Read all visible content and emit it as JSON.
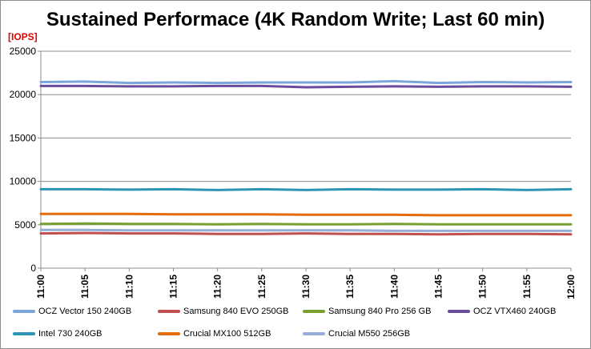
{
  "chart_data": {
    "type": "line",
    "title": "Sustained Performace (4K Random Write; Last 60 min)",
    "ylabel": "[IOPS]",
    "xlabel": "",
    "ylim": [
      0,
      25000
    ],
    "yticks": [
      "25000",
      "20000",
      "15000",
      "10000",
      "5000",
      "0"
    ],
    "x": [
      "11:00",
      "11:05",
      "11:10",
      "11:15",
      "11:20",
      "11:25",
      "11:30",
      "11:35",
      "11:40",
      "11:45",
      "11:50",
      "11:55",
      "12:00"
    ],
    "grid": "horizontal",
    "legend_position": "bottom",
    "series": [
      {
        "name": "OCZ Vector 150 240GB",
        "color": "#7ba6dc",
        "values": [
          21450,
          21500,
          21350,
          21400,
          21350,
          21400,
          21400,
          21400,
          21550,
          21350,
          21450,
          21400,
          21450
        ]
      },
      {
        "name": "Samsung 840 EVO 250GB",
        "color": "#c0504d",
        "values": [
          4000,
          4050,
          4000,
          4000,
          3950,
          3950,
          4000,
          3950,
          3950,
          3900,
          3950,
          3950,
          3900
        ]
      },
      {
        "name": "Samsung 840 Pro 256 GB",
        "color": "#77a030",
        "values": [
          5100,
          5150,
          5100,
          5100,
          5050,
          5100,
          5050,
          5050,
          5100,
          5050,
          5050,
          5050,
          5050
        ]
      },
      {
        "name": "OCZ VTX460 240GB",
        "color": "#6a4c9c",
        "values": [
          21000,
          21000,
          20950,
          20950,
          21000,
          21000,
          20850,
          20900,
          20950,
          20900,
          20950,
          20950,
          20900
        ]
      },
      {
        "name": "Intel 730 240GB",
        "color": "#2c95b5",
        "values": [
          9100,
          9100,
          9050,
          9100,
          9000,
          9100,
          9000,
          9100,
          9050,
          9050,
          9100,
          9000,
          9100
        ]
      },
      {
        "name": "Crucial MX100 512GB",
        "color": "#e46c0a",
        "values": [
          6250,
          6250,
          6250,
          6200,
          6200,
          6200,
          6150,
          6150,
          6150,
          6100,
          6100,
          6100,
          6100
        ]
      },
      {
        "name": "Crucial M550 256GB",
        "color": "#94afd6",
        "values": [
          4400,
          4400,
          4350,
          4350,
          4350,
          4350,
          4350,
          4350,
          4300,
          4300,
          4300,
          4300,
          4300
        ]
      }
    ]
  }
}
